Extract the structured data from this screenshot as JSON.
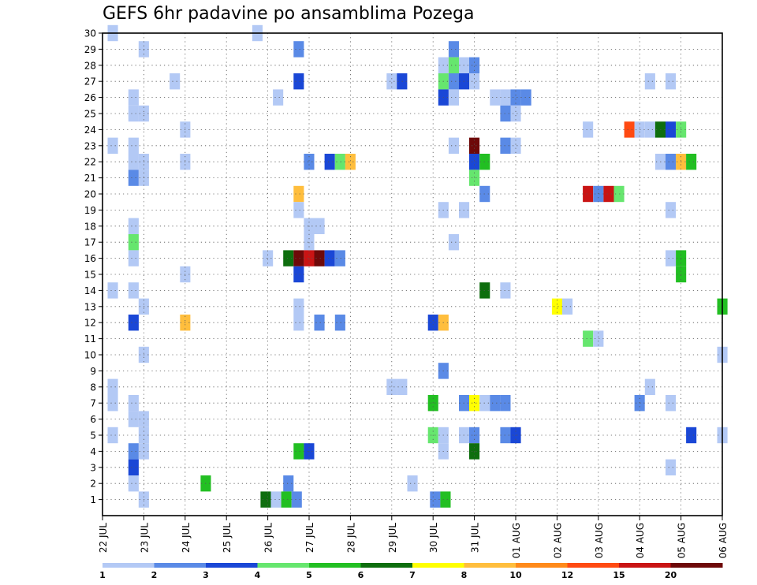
{
  "chart_data": {
    "type": "heatmap",
    "title": "GEFS 6hr padavine po ansamblima Pozega",
    "xlabel": "",
    "ylabel": "",
    "x_ticks": [
      "22 JUL",
      "23 JUL",
      "24 JUL",
      "25 JUL",
      "26 JUL",
      "27 JUL",
      "28 JUL",
      "29 JUL",
      "30 JUL",
      "31 JUL",
      "01 AUG",
      "02 AUG",
      "03 AUG",
      "04 AUG",
      "05 AUG",
      "06 AUG"
    ],
    "y_ticks": [
      "1",
      "2",
      "3",
      "4",
      "5",
      "6",
      "7",
      "8",
      "9",
      "10",
      "11",
      "12",
      "13",
      "14",
      "15",
      "16",
      "17",
      "18",
      "19",
      "20",
      "21",
      "22",
      "23",
      "24",
      "25",
      "26",
      "27",
      "28",
      "29",
      "30"
    ],
    "x_range_days": [
      0,
      15
    ],
    "y_range": [
      0,
      30
    ],
    "grid": "dotted",
    "colorbar": {
      "labels": [
        "1",
        "2",
        "3",
        "4",
        "5",
        "6",
        "7",
        "8",
        "10",
        "12",
        "15",
        "20"
      ],
      "colors": [
        "#b3c9f5",
        "#5a8ae6",
        "#1a47d6",
        "#66e66e",
        "#22bf22",
        "#0e6e0e",
        "#ffff00",
        "#ffbe3d",
        "#ff8a1a",
        "#ff4a12",
        "#c91414",
        "#6e0909"
      ]
    },
    "cells": [
      {
        "member": 30,
        "day": 0.25,
        "level": 1
      },
      {
        "member": 30,
        "day": 3.75,
        "level": 1
      },
      {
        "member": 29,
        "day": 1.0,
        "level": 1
      },
      {
        "member": 29,
        "day": 4.75,
        "level": 2
      },
      {
        "member": 29,
        "day": 8.5,
        "level": 2
      },
      {
        "member": 28,
        "day": 8.25,
        "level": 1
      },
      {
        "member": 28,
        "day": 8.5,
        "level": 4
      },
      {
        "member": 28,
        "day": 8.75,
        "level": 1
      },
      {
        "member": 28,
        "day": 9.0,
        "level": 2
      },
      {
        "member": 27,
        "day": 1.75,
        "level": 1
      },
      {
        "member": 27,
        "day": 4.75,
        "level": 3
      },
      {
        "member": 27,
        "day": 7.0,
        "level": 1
      },
      {
        "member": 27,
        "day": 7.25,
        "level": 3
      },
      {
        "member": 27,
        "day": 8.25,
        "level": 4
      },
      {
        "member": 27,
        "day": 8.5,
        "level": 2
      },
      {
        "member": 27,
        "day": 8.75,
        "level": 3
      },
      {
        "member": 27,
        "day": 9.0,
        "level": 1
      },
      {
        "member": 27,
        "day": 13.25,
        "level": 1
      },
      {
        "member": 27,
        "day": 13.75,
        "level": 1
      },
      {
        "member": 26,
        "day": 0.75,
        "level": 1
      },
      {
        "member": 26,
        "day": 4.25,
        "level": 1
      },
      {
        "member": 26,
        "day": 8.25,
        "level": 3
      },
      {
        "member": 26,
        "day": 8.5,
        "level": 1
      },
      {
        "member": 26,
        "day": 9.5,
        "level": 1
      },
      {
        "member": 26,
        "day": 9.75,
        "level": 1
      },
      {
        "member": 26,
        "day": 10.0,
        "level": 2
      },
      {
        "member": 26,
        "day": 10.25,
        "level": 2
      },
      {
        "member": 25,
        "day": 0.75,
        "level": 1
      },
      {
        "member": 25,
        "day": 1.0,
        "level": 1
      },
      {
        "member": 25,
        "day": 9.75,
        "level": 2
      },
      {
        "member": 25,
        "day": 10.0,
        "level": 1
      },
      {
        "member": 24,
        "day": 2.0,
        "level": 1
      },
      {
        "member": 24,
        "day": 11.75,
        "level": 1
      },
      {
        "member": 24,
        "day": 12.75,
        "level": 10
      },
      {
        "member": 24,
        "day": 13.0,
        "level": 1
      },
      {
        "member": 24,
        "day": 13.25,
        "level": 1
      },
      {
        "member": 24,
        "day": 13.5,
        "level": 6
      },
      {
        "member": 24,
        "day": 13.75,
        "level": 3
      },
      {
        "member": 24,
        "day": 14.0,
        "level": 4
      },
      {
        "member": 23,
        "day": 0.25,
        "level": 1
      },
      {
        "member": 23,
        "day": 0.75,
        "level": 1
      },
      {
        "member": 23,
        "day": 8.5,
        "level": 1
      },
      {
        "member": 23,
        "day": 9.0,
        "level": 12
      },
      {
        "member": 23,
        "day": 9.75,
        "level": 2
      },
      {
        "member": 23,
        "day": 10.0,
        "level": 1
      },
      {
        "member": 22,
        "day": 0.75,
        "level": 1
      },
      {
        "member": 22,
        "day": 1.0,
        "level": 1
      },
      {
        "member": 22,
        "day": 2.0,
        "level": 1
      },
      {
        "member": 22,
        "day": 5.0,
        "level": 2
      },
      {
        "member": 22,
        "day": 5.5,
        "level": 3
      },
      {
        "member": 22,
        "day": 5.75,
        "level": 4
      },
      {
        "member": 22,
        "day": 6.0,
        "level": 8
      },
      {
        "member": 22,
        "day": 9.0,
        "level": 3
      },
      {
        "member": 22,
        "day": 9.25,
        "level": 5
      },
      {
        "member": 22,
        "day": 13.5,
        "level": 1
      },
      {
        "member": 22,
        "day": 13.75,
        "level": 2
      },
      {
        "member": 22,
        "day": 14.0,
        "level": 8
      },
      {
        "member": 22,
        "day": 14.25,
        "level": 5
      },
      {
        "member": 21,
        "day": 0.75,
        "level": 2
      },
      {
        "member": 21,
        "day": 1.0,
        "level": 1
      },
      {
        "member": 21,
        "day": 9.0,
        "level": 4
      },
      {
        "member": 20,
        "day": 4.75,
        "level": 8
      },
      {
        "member": 20,
        "day": 9.25,
        "level": 2
      },
      {
        "member": 20,
        "day": 11.75,
        "level": 11
      },
      {
        "member": 20,
        "day": 12.0,
        "level": 2
      },
      {
        "member": 20,
        "day": 12.25,
        "level": 11
      },
      {
        "member": 20,
        "day": 12.5,
        "level": 4
      },
      {
        "member": 19,
        "day": 4.75,
        "level": 1
      },
      {
        "member": 19,
        "day": 8.25,
        "level": 1
      },
      {
        "member": 19,
        "day": 8.75,
        "level": 1
      },
      {
        "member": 19,
        "day": 13.75,
        "level": 1
      },
      {
        "member": 18,
        "day": 0.75,
        "level": 1
      },
      {
        "member": 18,
        "day": 5.0,
        "level": 1
      },
      {
        "member": 18,
        "day": 5.25,
        "level": 1
      },
      {
        "member": 17,
        "day": 0.75,
        "level": 4
      },
      {
        "member": 17,
        "day": 5.0,
        "level": 1
      },
      {
        "member": 17,
        "day": 8.5,
        "level": 1
      },
      {
        "member": 16,
        "day": 0.75,
        "level": 1
      },
      {
        "member": 16,
        "day": 4.0,
        "level": 1
      },
      {
        "member": 16,
        "day": 4.5,
        "level": 6
      },
      {
        "member": 16,
        "day": 4.75,
        "level": 12
      },
      {
        "member": 16,
        "day": 5.0,
        "level": 11
      },
      {
        "member": 16,
        "day": 5.25,
        "level": 12
      },
      {
        "member": 16,
        "day": 5.5,
        "level": 3
      },
      {
        "member": 16,
        "day": 5.75,
        "level": 2
      },
      {
        "member": 16,
        "day": 13.75,
        "level": 1
      },
      {
        "member": 16,
        "day": 14.0,
        "level": 5
      },
      {
        "member": 15,
        "day": 2.0,
        "level": 1
      },
      {
        "member": 15,
        "day": 4.75,
        "level": 3
      },
      {
        "member": 15,
        "day": 14.0,
        "level": 5
      },
      {
        "member": 14,
        "day": 0.25,
        "level": 1
      },
      {
        "member": 14,
        "day": 0.75,
        "level": 1
      },
      {
        "member": 14,
        "day": 9.25,
        "level": 6
      },
      {
        "member": 14,
        "day": 9.75,
        "level": 1
      },
      {
        "member": 13,
        "day": 1.0,
        "level": 1
      },
      {
        "member": 13,
        "day": 4.75,
        "level": 1
      },
      {
        "member": 13,
        "day": 11.0,
        "level": 7
      },
      {
        "member": 13,
        "day": 11.25,
        "level": 1
      },
      {
        "member": 13,
        "day": 15.0,
        "level": 5
      },
      {
        "member": 12,
        "day": 0.75,
        "level": 3
      },
      {
        "member": 12,
        "day": 2.0,
        "level": 8
      },
      {
        "member": 12,
        "day": 4.75,
        "level": 1
      },
      {
        "member": 12,
        "day": 5.25,
        "level": 2
      },
      {
        "member": 12,
        "day": 5.75,
        "level": 2
      },
      {
        "member": 12,
        "day": 8.0,
        "level": 3
      },
      {
        "member": 12,
        "day": 8.25,
        "level": 8
      },
      {
        "member": 11,
        "day": 11.75,
        "level": 4
      },
      {
        "member": 11,
        "day": 12.0,
        "level": 1
      },
      {
        "member": 10,
        "day": 1.0,
        "level": 1
      },
      {
        "member": 10,
        "day": 15.0,
        "level": 1
      },
      {
        "member": 9,
        "day": 8.25,
        "level": 2
      },
      {
        "member": 8,
        "day": 0.25,
        "level": 1
      },
      {
        "member": 8,
        "day": 7.0,
        "level": 1
      },
      {
        "member": 8,
        "day": 7.25,
        "level": 1
      },
      {
        "member": 8,
        "day": 13.25,
        "level": 1
      },
      {
        "member": 7,
        "day": 0.25,
        "level": 1
      },
      {
        "member": 7,
        "day": 0.75,
        "level": 1
      },
      {
        "member": 7,
        "day": 8.0,
        "level": 5
      },
      {
        "member": 7,
        "day": 8.75,
        "level": 2
      },
      {
        "member": 7,
        "day": 9.0,
        "level": 7
      },
      {
        "member": 7,
        "day": 9.25,
        "level": 1
      },
      {
        "member": 7,
        "day": 9.5,
        "level": 2
      },
      {
        "member": 7,
        "day": 9.75,
        "level": 2
      },
      {
        "member": 7,
        "day": 13.0,
        "level": 2
      },
      {
        "member": 7,
        "day": 13.75,
        "level": 1
      },
      {
        "member": 6,
        "day": 0.75,
        "level": 1
      },
      {
        "member": 6,
        "day": 1.0,
        "level": 1
      },
      {
        "member": 5,
        "day": 0.25,
        "level": 1
      },
      {
        "member": 5,
        "day": 1.0,
        "level": 1
      },
      {
        "member": 5,
        "day": 8.0,
        "level": 4
      },
      {
        "member": 5,
        "day": 8.25,
        "level": 1
      },
      {
        "member": 5,
        "day": 8.75,
        "level": 1
      },
      {
        "member": 5,
        "day": 9.0,
        "level": 2
      },
      {
        "member": 5,
        "day": 9.75,
        "level": 2
      },
      {
        "member": 5,
        "day": 10.0,
        "level": 3
      },
      {
        "member": 5,
        "day": 14.25,
        "level": 3
      },
      {
        "member": 5,
        "day": 15.0,
        "level": 1
      },
      {
        "member": 4,
        "day": 0.75,
        "level": 2
      },
      {
        "member": 4,
        "day": 1.0,
        "level": 1
      },
      {
        "member": 4,
        "day": 4.75,
        "level": 5
      },
      {
        "member": 4,
        "day": 5.0,
        "level": 3
      },
      {
        "member": 4,
        "day": 8.25,
        "level": 1
      },
      {
        "member": 4,
        "day": 9.0,
        "level": 6
      },
      {
        "member": 3,
        "day": 0.75,
        "level": 3
      },
      {
        "member": 3,
        "day": 13.75,
        "level": 1
      },
      {
        "member": 2,
        "day": 0.75,
        "level": 1
      },
      {
        "member": 2,
        "day": 2.5,
        "level": 5
      },
      {
        "member": 2,
        "day": 4.5,
        "level": 2
      },
      {
        "member": 2,
        "day": 7.5,
        "level": 1
      },
      {
        "member": 1,
        "day": 1.0,
        "level": 1
      },
      {
        "member": 1,
        "day": 3.95,
        "level": 6
      },
      {
        "member": 1,
        "day": 4.2,
        "level": 1
      },
      {
        "member": 1,
        "day": 4.45,
        "level": 5
      },
      {
        "member": 1,
        "day": 4.7,
        "level": 2
      },
      {
        "member": 1,
        "day": 8.05,
        "level": 2
      },
      {
        "member": 1,
        "day": 8.3,
        "level": 5
      }
    ]
  }
}
